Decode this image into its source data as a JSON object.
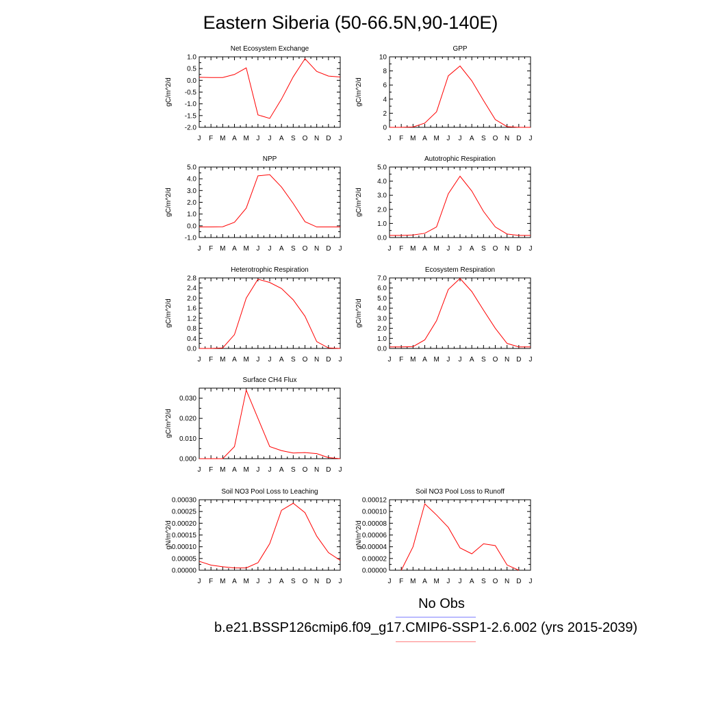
{
  "title": "Eastern Siberia (50-66.5N,90-140E)",
  "legend": {
    "obs_label": "No Obs",
    "obs_color": "#8080ff",
    "case_label": "b.e21.BSSP126cmip6.f09_g17.CMIP6-SSP1-2.6.002 (yrs 2015-2039)",
    "case_color": "#ff8080"
  },
  "series_color": "#ff0000",
  "chart_data": [
    {
      "type": "line",
      "title": "Net Ecosystem Exchange",
      "ylabel": "gC/m^2/d",
      "x": [
        "J",
        "F",
        "M",
        "A",
        "M",
        "J",
        "J",
        "A",
        "S",
        "O",
        "N",
        "D",
        "J"
      ],
      "values": [
        0.13,
        0.12,
        0.12,
        0.25,
        0.53,
        -1.47,
        -1.62,
        -0.8,
        0.15,
        0.92,
        0.38,
        0.18,
        0.14
      ],
      "ylim": [
        -2.0,
        1.0
      ],
      "yticks": [
        "-2.0",
        "-1.5",
        "-1.0",
        "-0.5",
        "0.0",
        "0.5",
        "1.0"
      ]
    },
    {
      "type": "line",
      "title": "GPP",
      "ylabel": "gC/m^2/d",
      "x": [
        "J",
        "F",
        "M",
        "A",
        "M",
        "J",
        "J",
        "A",
        "S",
        "O",
        "N",
        "D",
        "J"
      ],
      "values": [
        0.0,
        0.0,
        0.05,
        0.6,
        2.2,
        7.3,
        8.7,
        6.6,
        3.8,
        1.1,
        0.1,
        0.0,
        0.0
      ],
      "ylim": [
        0,
        10
      ],
      "yticks": [
        "0",
        "2",
        "4",
        "6",
        "8",
        "10"
      ]
    },
    {
      "type": "line",
      "title": "NPP",
      "ylabel": "gC/m^2/d",
      "x": [
        "J",
        "F",
        "M",
        "A",
        "M",
        "J",
        "J",
        "A",
        "S",
        "O",
        "N",
        "D",
        "J"
      ],
      "values": [
        -0.1,
        -0.1,
        -0.08,
        0.3,
        1.5,
        4.25,
        4.35,
        3.3,
        1.9,
        0.35,
        -0.1,
        -0.1,
        -0.1
      ],
      "ylim": [
        -1.0,
        5.0
      ],
      "yticks": [
        "-1.0",
        "0.0",
        "1.0",
        "2.0",
        "3.0",
        "4.0",
        "5.0"
      ]
    },
    {
      "type": "line",
      "title": "Autotrophic Respiration",
      "ylabel": "gC/m^2/d",
      "x": [
        "J",
        "F",
        "M",
        "A",
        "M",
        "J",
        "J",
        "A",
        "S",
        "O",
        "N",
        "D",
        "J"
      ],
      "values": [
        0.15,
        0.15,
        0.18,
        0.3,
        0.75,
        3.1,
        4.35,
        3.3,
        1.85,
        0.75,
        0.25,
        0.15,
        0.15
      ],
      "ylim": [
        0.0,
        5.0
      ],
      "yticks": [
        "0.0",
        "1.0",
        "2.0",
        "3.0",
        "4.0",
        "5.0"
      ]
    },
    {
      "type": "line",
      "title": "Heterotrophic Respiration",
      "ylabel": "gC/m^2/d",
      "x": [
        "J",
        "F",
        "M",
        "A",
        "M",
        "J",
        "J",
        "A",
        "S",
        "O",
        "N",
        "D",
        "J"
      ],
      "values": [
        0.0,
        0.0,
        0.02,
        0.55,
        2.0,
        2.75,
        2.62,
        2.38,
        1.93,
        1.28,
        0.27,
        0.02,
        0.0
      ],
      "ylim": [
        0.0,
        2.8
      ],
      "yticks": [
        "0.0",
        "0.4",
        "0.8",
        "1.2",
        "1.6",
        "2.0",
        "2.4",
        "2.8"
      ]
    },
    {
      "type": "line",
      "title": "Ecosystem Respiration",
      "ylabel": "gC/m^2/d",
      "x": [
        "J",
        "F",
        "M",
        "A",
        "M",
        "J",
        "J",
        "A",
        "S",
        "O",
        "N",
        "D",
        "J"
      ],
      "values": [
        0.15,
        0.15,
        0.18,
        0.85,
        2.75,
        5.85,
        6.95,
        5.65,
        3.8,
        2.0,
        0.5,
        0.15,
        0.15
      ],
      "ylim": [
        0.0,
        7.0
      ],
      "yticks": [
        "0.0",
        "1.0",
        "2.0",
        "3.0",
        "4.0",
        "5.0",
        "6.0",
        "7.0"
      ]
    },
    {
      "type": "line",
      "title": "Surface CH4 Flux",
      "ylabel": "gC/m^2/d",
      "x": [
        "J",
        "F",
        "M",
        "A",
        "M",
        "J",
        "J",
        "A",
        "S",
        "O",
        "N",
        "D",
        "J"
      ],
      "values": [
        0.0,
        0.0,
        0.0,
        0.006,
        0.034,
        0.02,
        0.006,
        0.004,
        0.0028,
        0.003,
        0.0025,
        0.0005,
        0.0
      ],
      "ylim": [
        0.0,
        0.035
      ],
      "yticks": [
        "0.000",
        "0.010",
        "0.020",
        "0.030"
      ],
      "ytick_values": [
        0.0,
        0.01,
        0.02,
        0.03
      ]
    },
    {
      "type": "line",
      "title": "Soil NO3 Pool Loss to Leaching",
      "ylabel": "gN/m^2/d",
      "x": [
        "J",
        "F",
        "M",
        "A",
        "M",
        "J",
        "J",
        "A",
        "S",
        "O",
        "N",
        "D",
        "J"
      ],
      "values": [
        3.8e-05,
        2.2e-05,
        1.5e-05,
        1e-05,
        1e-05,
        3.2e-05,
        0.000113,
        0.000255,
        0.000285,
        0.000245,
        0.000145,
        7.5e-05,
        4.2e-05
      ],
      "ylim": [
        0.0,
        0.0003
      ],
      "yticks": [
        "0.00000",
        "0.00005",
        "0.00010",
        "0.00015",
        "0.00020",
        "0.00025",
        "0.00030"
      ]
    },
    {
      "type": "line",
      "title": "Soil NO3 Pool Loss to Runoff",
      "ylabel": "gN/m^2/d",
      "x": [
        "J",
        "F",
        "M",
        "A",
        "M",
        "J",
        "J",
        "A",
        "S",
        "O",
        "N",
        "D",
        "J"
      ],
      "values": [
        null,
        0.0,
        4e-05,
        0.000113,
        9.4e-05,
        7.3e-05,
        3.8e-05,
        2.8e-05,
        4.5e-05,
        4.2e-05,
        9e-06,
        0.0,
        null
      ],
      "ylim": [
        0.0,
        0.00012
      ],
      "yticks": [
        "0.00000",
        "0.00002",
        "0.00004",
        "0.00006",
        "0.00008",
        "0.00010",
        "0.00012"
      ]
    }
  ]
}
